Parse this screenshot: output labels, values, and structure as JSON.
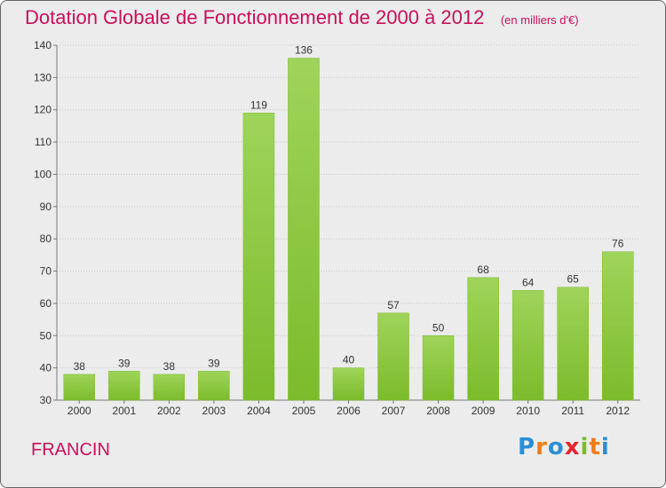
{
  "chart_data": {
    "type": "bar",
    "title": "Dotation Globale de Fonctionnement de 2000 à 2012",
    "unit_note": "(en milliers d'€)",
    "categories": [
      "2000",
      "2001",
      "2002",
      "2003",
      "2004",
      "2005",
      "2006",
      "2007",
      "2008",
      "2009",
      "2010",
      "2011",
      "2012"
    ],
    "values": [
      38,
      39,
      38,
      39,
      119,
      136,
      40,
      57,
      50,
      68,
      64,
      65,
      76
    ],
    "ylim": [
      30,
      140
    ],
    "yticks": [
      30,
      40,
      50,
      60,
      70,
      80,
      90,
      100,
      110,
      120,
      130,
      140
    ],
    "grid": true,
    "bar_color": "#7cbb2c",
    "bar_color_light": "#9fd45a"
  },
  "footer": {
    "commune": "FRANCIN",
    "brand": "Proxiti",
    "brand_letters": [
      {
        "ch": "P",
        "color": "#2a8fd6"
      },
      {
        "ch": "r",
        "color": "#f07d1a"
      },
      {
        "ch": "o",
        "color": "#2a8fd6"
      },
      {
        "ch": "x",
        "color": "#e5262c"
      },
      {
        "ch": "i",
        "color": "#7cbb2c"
      },
      {
        "ch": "t",
        "color": "#f07d1a"
      },
      {
        "ch": "i",
        "color": "#2a8fd6"
      }
    ]
  }
}
